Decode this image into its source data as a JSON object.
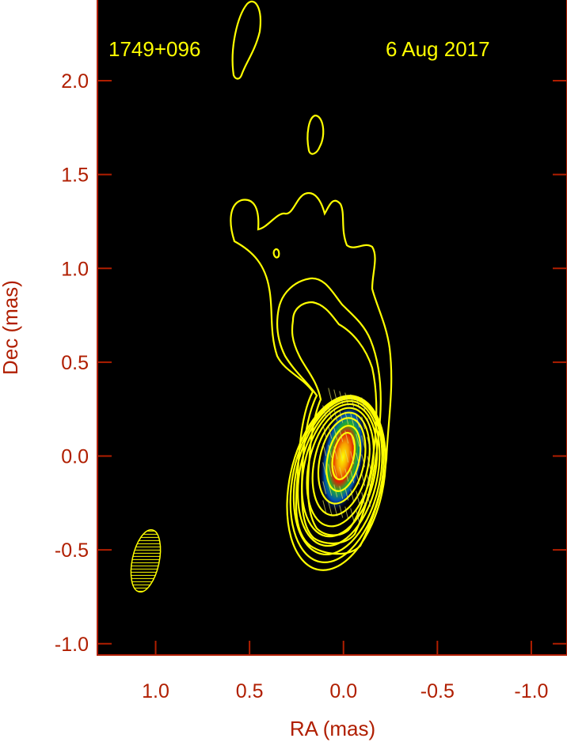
{
  "chart_data": {
    "type": "contour",
    "source_label": "1749+096",
    "date_label": "6 Aug 2017",
    "xlabel": "RA (mas)",
    "ylabel": "Dec (mas)",
    "xlim": [
      1.31,
      -1.19
    ],
    "ylim": [
      -1.06,
      2.43
    ],
    "xticks": [
      "1.0",
      "0.5",
      "0.0",
      "-0.5",
      "-1.0"
    ],
    "xtick_values": [
      1.0,
      0.5,
      0.0,
      -0.5,
      -1.0
    ],
    "yticks": [
      "2.0",
      "1.5",
      "1.0",
      "0.5",
      "0.0",
      "-0.5",
      "-1.0"
    ],
    "ytick_values": [
      2.0,
      1.5,
      1.0,
      0.5,
      0.0,
      -0.5,
      -1.0
    ],
    "peak_position": [
      0.0,
      0.0
    ],
    "beam_position": [
      1.05,
      -0.56
    ],
    "colors": {
      "background": "#000000",
      "contours": "#ffff00",
      "axes": "#b01e00",
      "colormap": [
        "#000050",
        "#0050c8",
        "#00a040",
        "#e02000",
        "#ffff00"
      ]
    }
  }
}
